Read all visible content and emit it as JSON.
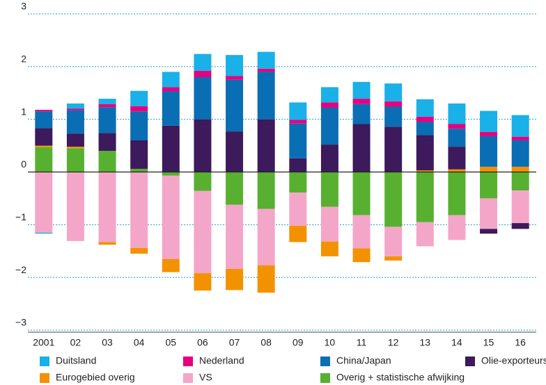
{
  "chart_data": {
    "type": "bar",
    "stacked": true,
    "categories": [
      "2001",
      "02",
      "03",
      "04",
      "05",
      "06",
      "07",
      "08",
      "09",
      "10",
      "11",
      "12",
      "13",
      "14",
      "15",
      "16"
    ],
    "series": [
      {
        "name": "Duitsland",
        "color": "#1ab0e8",
        "values": [
          -0.02,
          0.1,
          0.1,
          0.29,
          0.29,
          0.32,
          0.4,
          0.32,
          0.33,
          0.29,
          0.32,
          0.34,
          0.33,
          0.39,
          0.4,
          0.41
        ]
      },
      {
        "name": "Nederland",
        "color": "#e6007e",
        "values": [
          0.03,
          0.03,
          0.06,
          0.1,
          0.08,
          0.12,
          0.07,
          0.06,
          0.07,
          0.1,
          0.1,
          0.1,
          0.1,
          0.09,
          0.08,
          0.07
        ]
      },
      {
        "name": "China/Japan",
        "color": "#0a6eb4",
        "values": [
          0.32,
          0.44,
          0.49,
          0.55,
          0.65,
          0.8,
          0.98,
          0.9,
          0.66,
          0.7,
          0.38,
          0.38,
          0.25,
          0.34,
          0.58,
          0.5
        ]
      },
      {
        "name": "Olie-exporteurs",
        "color": "#3c1a5b",
        "values": [
          0.33,
          0.25,
          0.34,
          0.54,
          0.88,
          1.0,
          0.77,
          1.0,
          0.26,
          0.52,
          0.91,
          0.86,
          0.67,
          0.43,
          -0.09,
          -0.11
        ]
      },
      {
        "name": "Eurogebied overig",
        "color": "#f39200",
        "values": [
          0.03,
          0.03,
          -0.05,
          -0.11,
          -0.25,
          -0.33,
          -0.4,
          -0.52,
          -0.31,
          -0.28,
          -0.26,
          -0.08,
          0.03,
          0.05,
          0.1,
          0.1
        ]
      },
      {
        "name": "VS",
        "color": "#f4a6c8",
        "values": [
          -1.15,
          -1.31,
          -1.33,
          -1.44,
          -1.58,
          -1.56,
          -1.22,
          -1.07,
          -0.63,
          -0.66,
          -0.63,
          -0.56,
          -0.46,
          -0.47,
          -0.58,
          -0.62
        ]
      },
      {
        "name": "Overig + statistische afwijking",
        "color": "#58b030",
        "values": [
          0.47,
          0.45,
          0.4,
          0.06,
          -0.07,
          -0.36,
          -0.62,
          -0.7,
          -0.39,
          -0.66,
          -0.82,
          -1.04,
          -0.95,
          -0.82,
          -0.5,
          -0.35
        ]
      }
    ],
    "ylim": [
      -3,
      3
    ],
    "yticks": [
      {
        "value": -3,
        "label": "−3"
      },
      {
        "value": -2,
        "label": "−2"
      },
      {
        "value": -1,
        "label": "−1"
      },
      0,
      1,
      2,
      3
    ],
    "grid": true
  }
}
